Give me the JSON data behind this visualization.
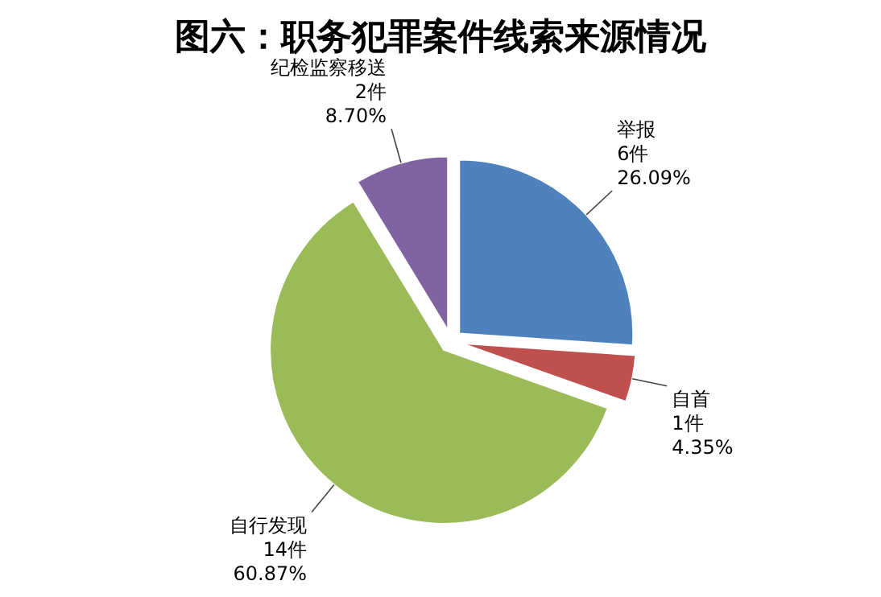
{
  "chart_data": {
    "type": "pie",
    "title": "图六：职务犯罪案件线索来源情况",
    "categories": [
      "举报",
      "自首",
      "自行发现",
      "纪检监察移送"
    ],
    "values": [
      6,
      1,
      14,
      2
    ],
    "colors": [
      "#4f81bd",
      "#c0504d",
      "#9bbb59",
      "#8064a2"
    ],
    "value_labels": [
      "6件\n26.09%",
      "1件\n4.35%",
      "14件\n60.87%",
      "2件\n8.70%"
    ]
  }
}
